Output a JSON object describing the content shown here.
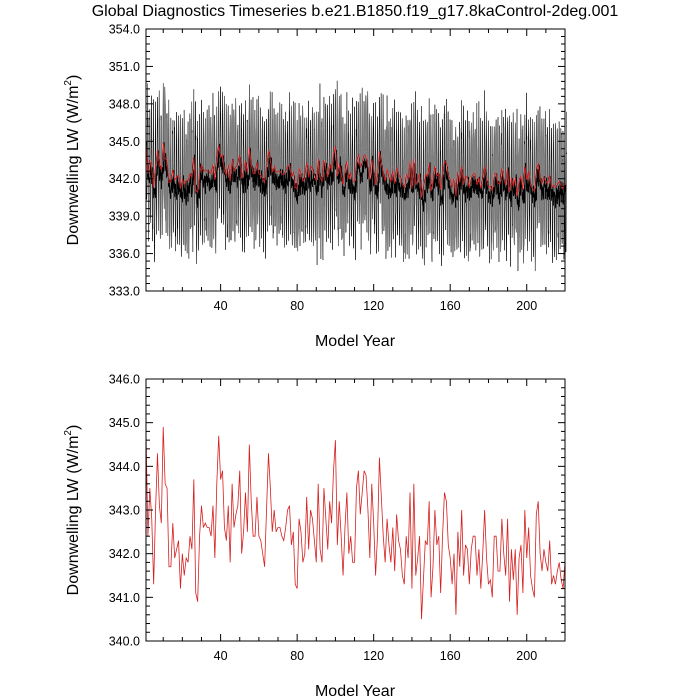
{
  "chart_data": [
    {
      "type": "line",
      "title": "Global Diagnostics Timeseries b.e21.B1850.f19_g17.8kaControl-2deg.001",
      "xlabel": "Model Year",
      "ylabel_main": "Downwelling LW (W/m",
      "ylabel_sup": "2",
      "ylabel_tail": ")",
      "xlim": [
        1,
        220
      ],
      "ylim": [
        333.0,
        354.0
      ],
      "xticks": [
        40,
        80,
        120,
        160,
        200
      ],
      "xtick_labels": [
        "40",
        "80",
        "120",
        "160",
        "200"
      ],
      "yticks": [
        333.0,
        336.0,
        339.0,
        342.0,
        345.0,
        348.0,
        351.0,
        354.0
      ],
      "ytick_labels": [
        "333.0",
        "336.0",
        "339.0",
        "342.0",
        "345.0",
        "348.0",
        "351.0",
        "354.0"
      ],
      "grid": false,
      "series": [
        {
          "style": "monthly",
          "color": "#000000",
          "n_points": 2640,
          "mean": 342.2,
          "seasonal_amplitude": 5.0,
          "range": [
            334.6,
            352.4
          ]
        },
        {
          "style": "running-mean",
          "color": "#000000",
          "mean": 341.8,
          "range": [
            339.6,
            344.8
          ]
        },
        {
          "style": "annual-mean",
          "color": "#d62020",
          "mean": 342.4,
          "range": [
            340.4,
            344.9
          ]
        }
      ]
    },
    {
      "type": "line",
      "xlabel": "Model Year",
      "ylabel_main": "Downwelling LW (W/m",
      "ylabel_sup": "2",
      "ylabel_tail": ")",
      "xlim": [
        1,
        220
      ],
      "ylim": [
        340.0,
        346.0
      ],
      "xticks": [
        40,
        80,
        120,
        160,
        200
      ],
      "xtick_labels": [
        "40",
        "80",
        "120",
        "160",
        "200"
      ],
      "yticks": [
        340.0,
        341.0,
        342.0,
        343.0,
        344.0,
        345.0,
        346.0
      ],
      "ytick_labels": [
        "340.0",
        "341.0",
        "342.0",
        "343.0",
        "344.0",
        "345.0",
        "346.0"
      ],
      "grid": false,
      "series": [
        {
          "style": "annual-mean",
          "color": "#d62020",
          "x_start": 1,
          "x_step": 1,
          "values": [
            344.8,
            342.4,
            343.5,
            342.8,
            341.3,
            343.0,
            344.3,
            343.1,
            342.7,
            344.9,
            343.6,
            343.5,
            341.7,
            341.7,
            342.7,
            341.9,
            342.1,
            342.3,
            341.2,
            342.0,
            341.5,
            341.9,
            341.8,
            342.4,
            342.1,
            343.7,
            341.1,
            340.9,
            342.4,
            343.1,
            342.6,
            342.7,
            342.6,
            342.6,
            342.4,
            343.1,
            341.9,
            343.6,
            344.7,
            343.7,
            343.9,
            342.6,
            342.3,
            343.1,
            341.8,
            343.6,
            342.6,
            342.9,
            343.1,
            343.9,
            342.0,
            342.5,
            343.4,
            342.5,
            344.5,
            343.2,
            342.4,
            342.4,
            343.3,
            342.4,
            342.3,
            342.0,
            341.7,
            343.0,
            344.3,
            343.5,
            342.5,
            343.0,
            342.5,
            342.6,
            342.6,
            342.4,
            342.3,
            342.6,
            343.0,
            343.1,
            342.2,
            342.5,
            341.3,
            341.2,
            342.8,
            342.5,
            341.8,
            342.0,
            343.3,
            342.1,
            343.0,
            342.8,
            342.3,
            341.8,
            343.6,
            342.1,
            341.8,
            343.5,
            342.8,
            342.1,
            343.2,
            342.7,
            343.9,
            344.6,
            342.2,
            343.2,
            342.4,
            341.5,
            342.6,
            343.4,
            342.0,
            342.4,
            341.8,
            341.8,
            343.5,
            343.9,
            342.9,
            343.4,
            343.9,
            343.8,
            343.0,
            341.9,
            343.6,
            342.7,
            341.5,
            342.4,
            344.2,
            343.3,
            342.4,
            341.8,
            342.8,
            342.2,
            341.8,
            342.6,
            341.6,
            342.9,
            342.3,
            342.1,
            341.5,
            341.3,
            342.4,
            341.9,
            343.4,
            341.2,
            343.6,
            341.5,
            341.9,
            342.4,
            340.5,
            341.4,
            342.3,
            342.2,
            343.2,
            341.0,
            341.7,
            343.0,
            342.2,
            342.4,
            341.1,
            342.4,
            343.4,
            343.2,
            342.2,
            341.9,
            341.3,
            342.0,
            340.6,
            342.5,
            341.7,
            343.0,
            341.5,
            342.2,
            342.1,
            341.3,
            342.1,
            342.4,
            342.4,
            341.5,
            342.1,
            341.2,
            342.0,
            343.0,
            341.9,
            341.3,
            341.4,
            341.0,
            342.4,
            342.4,
            341.6,
            341.6,
            342.8,
            342.0,
            341.5,
            342.8,
            340.9,
            342.1,
            341.4,
            342.1,
            340.6,
            341.9,
            342.2,
            341.1,
            343.0,
            341.9,
            342.6,
            341.5,
            341.2,
            341.0,
            342.9,
            343.2,
            342.0,
            341.6,
            342.1,
            341.8,
            341.6,
            342.3,
            341.3,
            341.5,
            341.3,
            341.6,
            341.8,
            341.4,
            341.2,
            341.8
          ]
        }
      ]
    }
  ]
}
